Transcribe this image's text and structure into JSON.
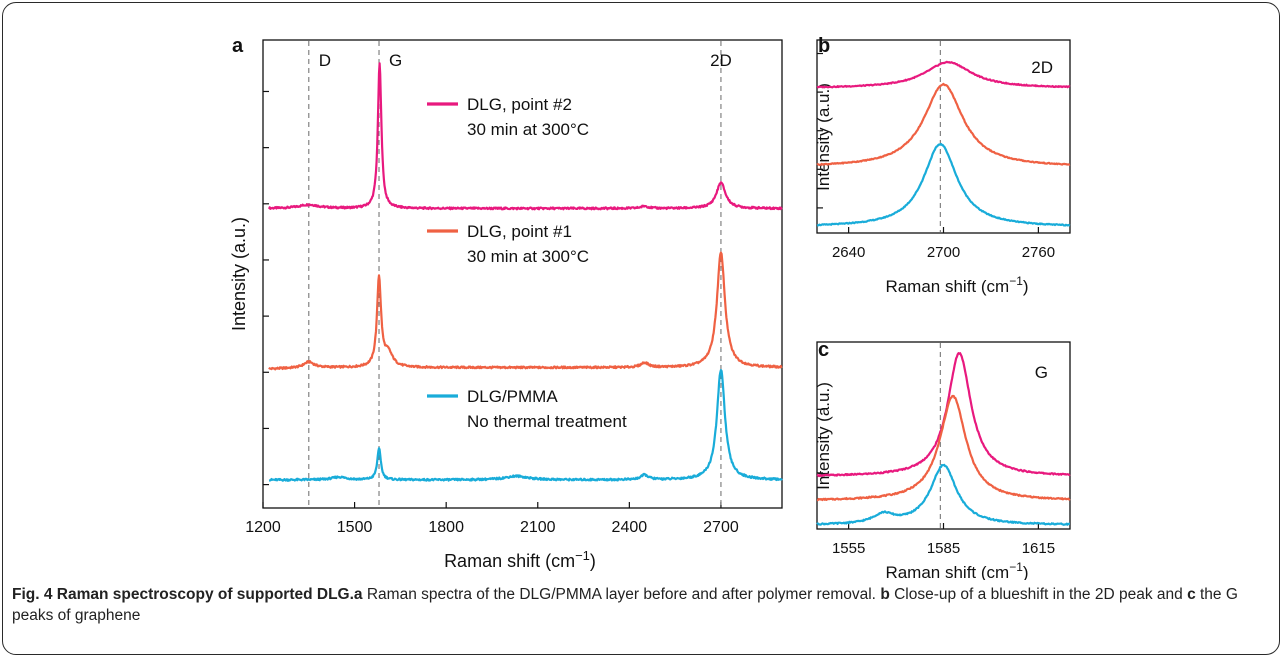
{
  "chart_data": [
    {
      "panel": "a",
      "type": "line",
      "xlabel": "Raman shift (cm",
      "xlabel_sup": "−1",
      "xlabel_end": ")",
      "ylabel": "Intensity (a.u.)",
      "xlim": [
        1200,
        2900
      ],
      "xticks": [
        1200,
        1500,
        1800,
        2100,
        2400,
        2700
      ],
      "ylim": [
        0,
        10
      ],
      "yticks_unlabeled": [
        0.5,
        1.7,
        2.9,
        4.1,
        5.3,
        6.5,
        7.7,
        8.9
      ],
      "vlines": [
        1350,
        1580,
        2700
      ],
      "peak_labels": [
        "D",
        "G",
        "2D"
      ],
      "series": [
        {
          "name": "DLG, point #2",
          "note": "30 min at 300°C",
          "color": "#e8197e",
          "baseline": 6.4,
          "peaks": [
            {
              "x": 1350,
              "h": 0.08,
              "w": 40
            },
            {
              "x": 1582,
              "h": 3.1,
              "w": 7
            },
            {
              "x": 2450,
              "h": 0.05,
              "w": 15
            },
            {
              "x": 2700,
              "h": 0.55,
              "w": 18
            }
          ]
        },
        {
          "name": "DLG, point #1",
          "note": "30 min at 300°C",
          "color": "#ef6143",
          "baseline": 3.0,
          "peaks": [
            {
              "x": 1350,
              "h": 0.12,
              "w": 20
            },
            {
              "x": 1580,
              "h": 1.9,
              "w": 8
            },
            {
              "x": 1610,
              "h": 0.3,
              "w": 18
            },
            {
              "x": 2450,
              "h": 0.1,
              "w": 15
            },
            {
              "x": 2700,
              "h": 2.45,
              "w": 16
            }
          ]
        },
        {
          "name": "DLG/PMMA",
          "note": "No thermal treatment",
          "color": "#19acd9",
          "baseline": 0.6,
          "peaks": [
            {
              "x": 1450,
              "h": 0.06,
              "w": 30
            },
            {
              "x": 1580,
              "h": 0.68,
              "w": 7
            },
            {
              "x": 2030,
              "h": 0.08,
              "w": 45
            },
            {
              "x": 2450,
              "h": 0.1,
              "w": 15
            },
            {
              "x": 2700,
              "h": 2.35,
              "w": 16
            }
          ]
        }
      ]
    },
    {
      "panel": "b",
      "type": "line",
      "xlabel": "Raman shift (cm",
      "xlabel_sup": "−1",
      "xlabel_end": ")",
      "ylabel": "Intensity (a.u.)",
      "xlim": [
        2620,
        2780
      ],
      "xticks": [
        2640,
        2700,
        2760
      ],
      "ylim": [
        0,
        10
      ],
      "yticks_unlabeled": [
        1.3,
        3.3,
        5.3,
        7.3,
        9.3
      ],
      "vlines": [
        2698
      ],
      "peak_labels": [
        "2D"
      ],
      "series": [
        {
          "color": "#e8197e",
          "baseline": 7.5,
          "peaks": [
            {
              "x": 2703,
              "h": 1.35,
              "w": 18
            }
          ]
        },
        {
          "color": "#ef6143",
          "baseline": 3.4,
          "peaks": [
            {
              "x": 2700,
              "h": 4.3,
              "w": 15
            }
          ]
        },
        {
          "color": "#19acd9",
          "baseline": 0.3,
          "peaks": [
            {
              "x": 2698,
              "h": 4.3,
              "w": 13
            }
          ]
        }
      ]
    },
    {
      "panel": "c",
      "type": "line",
      "xlabel": "Raman shift (cm",
      "xlabel_sup": "−1",
      "xlabel_end": ")",
      "ylabel": "Intensity (a.u.)",
      "xlim": [
        1545,
        1625
      ],
      "xticks": [
        1555,
        1585,
        1615
      ],
      "ylim": [
        0,
        10
      ],
      "yticks_unlabeled": [
        3.0,
        6.4
      ],
      "vlines": [
        1584
      ],
      "peak_labels": [
        "G"
      ],
      "series": [
        {
          "color": "#e8197e",
          "baseline": 2.8,
          "peaks": [
            {
              "x": 1590,
              "h": 6.6,
              "w": 4.5
            }
          ]
        },
        {
          "color": "#ef6143",
          "baseline": 1.5,
          "peaks": [
            {
              "x": 1588,
              "h": 5.6,
              "w": 5
            }
          ]
        },
        {
          "color": "#19acd9",
          "baseline": 0.2,
          "peaks": [
            {
              "x": 1585,
              "h": 3.2,
              "w": 5
            },
            {
              "x": 1566,
              "h": 0.5,
              "w": 4
            }
          ]
        }
      ]
    }
  ],
  "caption": {
    "fig": "Fig. 4 Raman spectroscopy of supported DLG.",
    "a_label": "a",
    "a_text": " Raman spectra of the DLG/PMMA layer before and after polymer removal. ",
    "b_label": "b",
    "b_text": " Close-up of a blueshift in the 2D peak and ",
    "c_label": "c",
    "c_text": " the G peaks of graphene"
  }
}
